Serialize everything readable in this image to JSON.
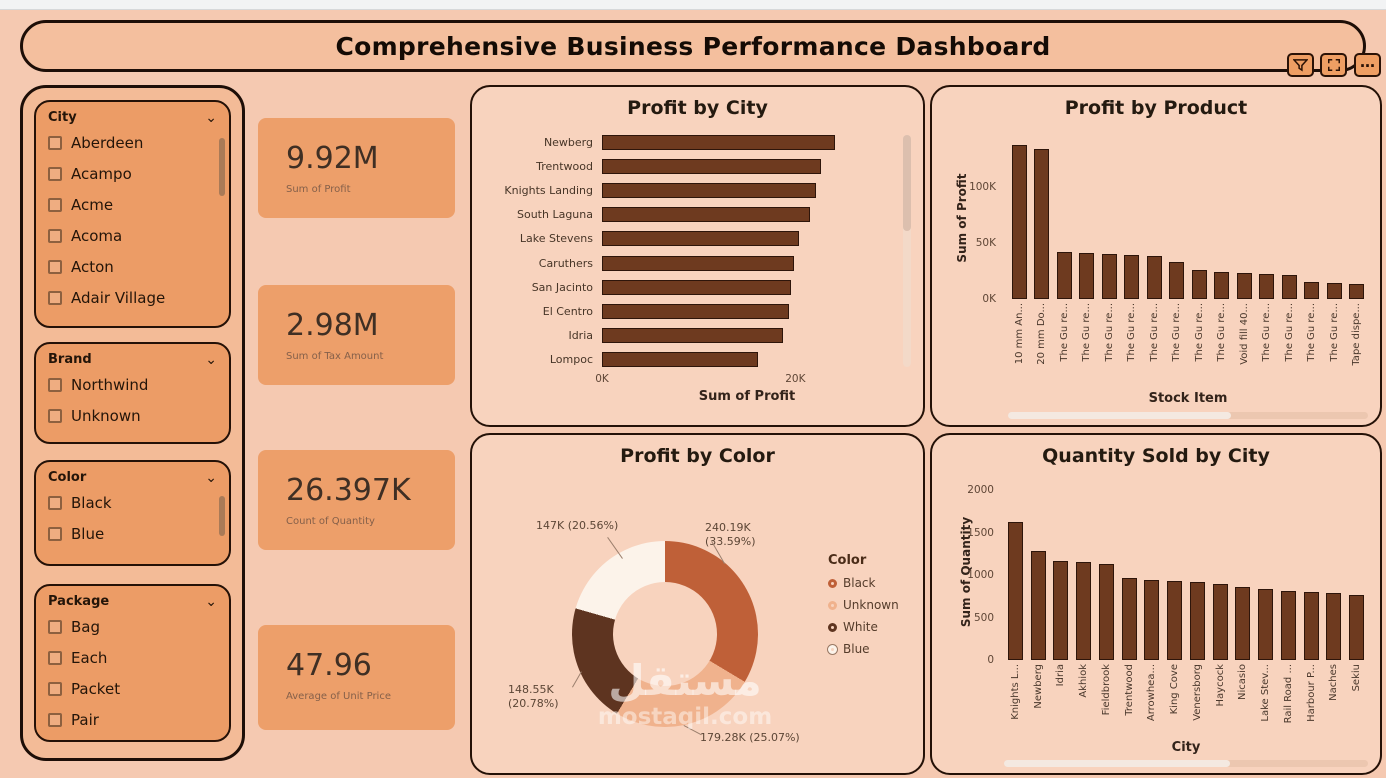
{
  "header": {
    "title": "Comprehensive Business Performance Dashboard"
  },
  "toolbar": {
    "more_glyph": "…"
  },
  "slicers": [
    {
      "title": "City",
      "items": [
        "Aberdeen",
        "Acampo",
        "Acme",
        "Acoma",
        "Acton",
        "Adair Village"
      ]
    },
    {
      "title": "Brand",
      "items": [
        "Northwind",
        "Unknown"
      ]
    },
    {
      "title": "Color",
      "items": [
        "Black",
        "Blue"
      ]
    },
    {
      "title": "Package",
      "items": [
        "Bag",
        "Each",
        "Packet",
        "Pair"
      ]
    }
  ],
  "kpis": [
    {
      "value": "9.92M",
      "label": "Sum of Profit"
    },
    {
      "value": "2.98M",
      "label": "Sum of Tax Amount"
    },
    {
      "value": "26.397K",
      "label": "Count of Quantity"
    },
    {
      "value": "47.96",
      "label": "Average of Unit Price"
    }
  ],
  "watermark": {
    "arabic": "مستقل",
    "latin": "mostaqil.com"
  },
  "colors": {
    "bar": "#6e3a1f",
    "background": "#f5c9b1",
    "panel": "#f8d3be",
    "card": "#ec9c66",
    "border": "#1d0e07"
  },
  "chart_data": [
    {
      "id": "profit-by-city",
      "type": "bar",
      "orientation": "horizontal",
      "title": "Profit by City",
      "xlabel": "Sum of Profit",
      "categories": [
        "Newberg",
        "Trentwood",
        "Knights Landing",
        "South Laguna",
        "Lake Stevens",
        "Caruthers",
        "San Jacinto",
        "El Centro",
        "Idria",
        "Lompoc"
      ],
      "values": [
        24100,
        22700,
        22100,
        21500,
        20400,
        19900,
        19600,
        19300,
        18700,
        16100
      ],
      "xlim": [
        0,
        30000
      ],
      "x_ticks": [
        {
          "label": "0K",
          "value": 0
        },
        {
          "label": "20K",
          "value": 20000
        }
      ]
    },
    {
      "id": "profit-by-product",
      "type": "bar",
      "orientation": "vertical",
      "title": "Profit by Product",
      "xlabel": "Stock Item",
      "ylabel": "Sum of Profit",
      "categories": [
        "10 mm An...",
        "20 mm Do...",
        "The Gu re...",
        "The Gu re...",
        "The Gu re...",
        "The Gu re...",
        "The Gu re...",
        "The Gu re...",
        "The Gu re...",
        "The Gu re...",
        "Void fill 40...",
        "The Gu re...",
        "The Gu re...",
        "The Gu re...",
        "The Gu re...",
        "Tape dispe..."
      ],
      "values": [
        137000,
        134000,
        42000,
        41000,
        40000,
        39000,
        38000,
        33000,
        26000,
        24000,
        23000,
        22000,
        21000,
        15000,
        14000,
        13000
      ],
      "ylim": [
        0,
        149000
      ],
      "y_ticks": [
        {
          "label": "0K",
          "value": 0
        },
        {
          "label": "50K",
          "value": 50000
        },
        {
          "label": "100K",
          "value": 100000
        }
      ],
      "scrollbar": "horizontal"
    },
    {
      "id": "profit-by-color",
      "type": "donut",
      "title": "Profit by Color",
      "legend_title": "Color",
      "slices": [
        {
          "label": "Black",
          "value": "240.19K",
          "pct": 33.59,
          "color": "#bf6038",
          "callout": "240.19K (33.59%)"
        },
        {
          "label": "Unknown",
          "value": "179.28K",
          "pct": 25.07,
          "color": "#f0b28d",
          "callout": "179.28K (25.07%)"
        },
        {
          "label": "White",
          "value": "148.55K",
          "pct": 20.78,
          "color": "#5e3420",
          "callout": "148.55K (20.78%)"
        },
        {
          "label": "Blue",
          "value": "147K",
          "pct": 20.56,
          "color": "#fcf3ea",
          "callout": "147K (20.56%)",
          "outlined": true
        }
      ]
    },
    {
      "id": "quantity-sold-by-city",
      "type": "bar",
      "orientation": "vertical",
      "title": "Quantity Sold by City",
      "xlabel": "City",
      "ylabel": "Sum of Quantity",
      "categories": [
        "Knights L...",
        "Newberg",
        "Idria",
        "Akhiok",
        "Fieldbrook",
        "Trentwood",
        "Arrowhea...",
        "King Cove",
        "Venersborg",
        "Haycock",
        "Nicasio",
        "Lake Stev...",
        "Rail Road ...",
        "Harbour P...",
        "Naches",
        "Sekiu"
      ],
      "values": [
        1620,
        1280,
        1170,
        1150,
        1130,
        960,
        940,
        930,
        915,
        890,
        860,
        840,
        815,
        800,
        790,
        770
      ],
      "ylim": [
        0,
        2000
      ],
      "y_ticks": [
        {
          "label": "0",
          "value": 0
        },
        {
          "label": "500",
          "value": 500
        },
        {
          "label": "1000",
          "value": 1000
        },
        {
          "label": "1500",
          "value": 1500
        },
        {
          "label": "2000",
          "value": 2000
        }
      ],
      "scrollbar": "horizontal"
    }
  ]
}
